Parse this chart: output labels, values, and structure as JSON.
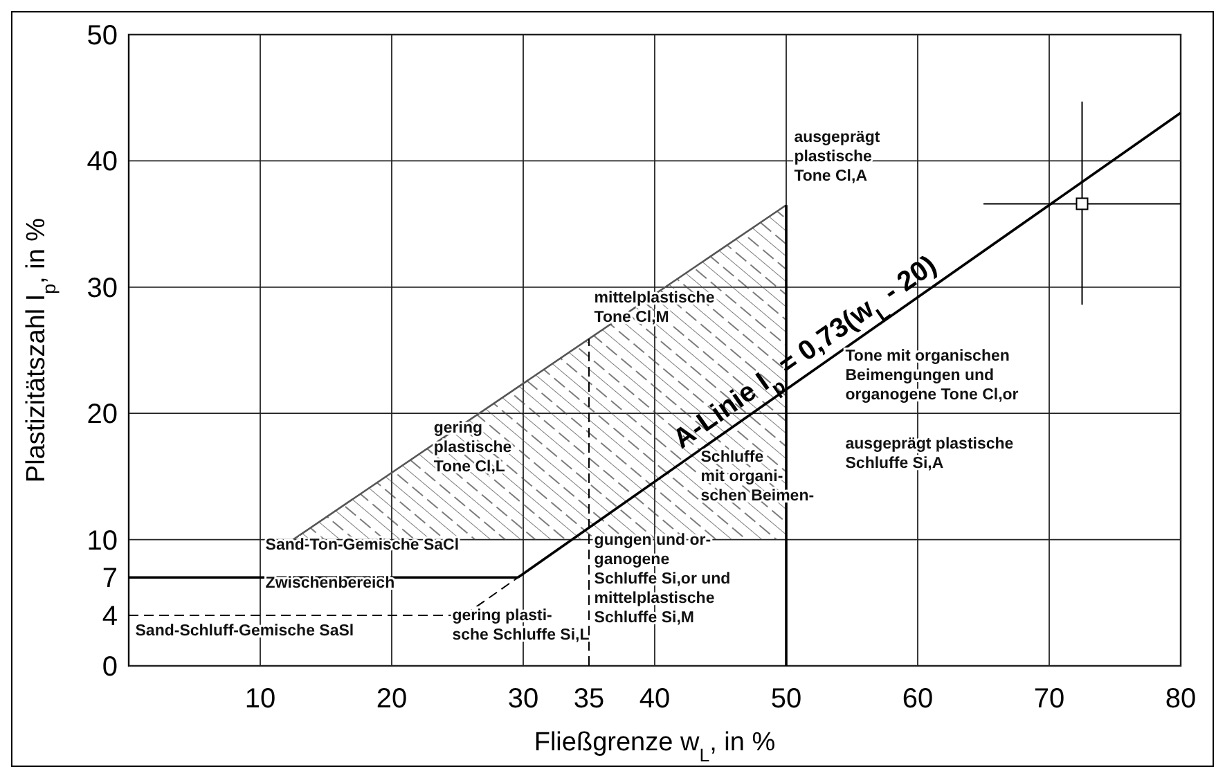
{
  "chart_data": {
    "type": "line",
    "xlabel": "Fließgrenze w$_{L}$, in %",
    "ylabel": "Plastizitätszahl I$_{p}$, in %",
    "xlim": [
      0,
      80
    ],
    "ylim": [
      0,
      50
    ],
    "xticks": [
      10,
      20,
      30,
      {
        "value": 35,
        "label": "35"
      },
      40,
      50,
      60,
      70,
      80
    ],
    "yticks": [
      0,
      {
        "value": 4,
        "label": "4"
      },
      {
        "value": 7,
        "label": "7"
      },
      10,
      20,
      30,
      40,
      50
    ],
    "grid": true,
    "legend": false,
    "series": [
      {
        "color": "#555555",
        "x": [
          12.5,
          50
        ],
        "values": [
          10,
          36.5
        ]
      },
      {
        "color": "#000000",
        "x": [
          29.6,
          80
        ],
        "values": [
          7,
          43.8
        ],
        "name": "A-Linie I$_{p}$ = 0,73(w$_{L}$ - 20)"
      },
      {
        "color": "#000000",
        "x": [
          25.5,
          29.6
        ],
        "values": [
          4,
          7
        ],
        "line_style": "dashed"
      },
      {
        "color": "#000000",
        "x": [
          50,
          50
        ],
        "values": [
          0,
          36.5
        ]
      },
      {
        "color": "#000000",
        "x": [
          35,
          35
        ],
        "values": [
          0,
          25.9
        ],
        "line_style": "dashed"
      },
      {
        "color": "#000000",
        "x": [
          0,
          29.6
        ],
        "values": [
          7,
          7
        ]
      },
      {
        "color": "#000000",
        "x": [
          0,
          25.5
        ],
        "values": [
          4,
          4
        ],
        "line_style": "dashed"
      },
      {
        "type": "scatter",
        "color": "#000000",
        "marker": "square",
        "x": [
          72.5
        ],
        "values": [
          36.6
        ],
        "errors": [
          [
            28.6,
            44.7
          ]
        ],
        "xerrors": [
          [
            65,
            80
          ]
        ]
      }
    ],
    "annotations": [
      "ausgeprägt\nplastische\nTone Cl,A",
      "mittelplastische\nTone Cl,M",
      "gering\nplastische\nTone Cl,L",
      "Tone mit organischen\nBeimengungen und\norganogene Tone Cl,or",
      "ausgeprägt plastische\nSchluffe Si,A",
      "Schluffe\nmit organi-\nschen Beimen-",
      "gungen und or-\nganogene\nSchluffe Si,or und\nmittelplastische\nSchluffe Si,M",
      "Sand-Ton-Gemische SaCl",
      "Zwischenbereich",
      "Sand-Schluff-Gemische SaSl",
      "gering plasti-\nsche Schluffe Si,L"
    ]
  }
}
